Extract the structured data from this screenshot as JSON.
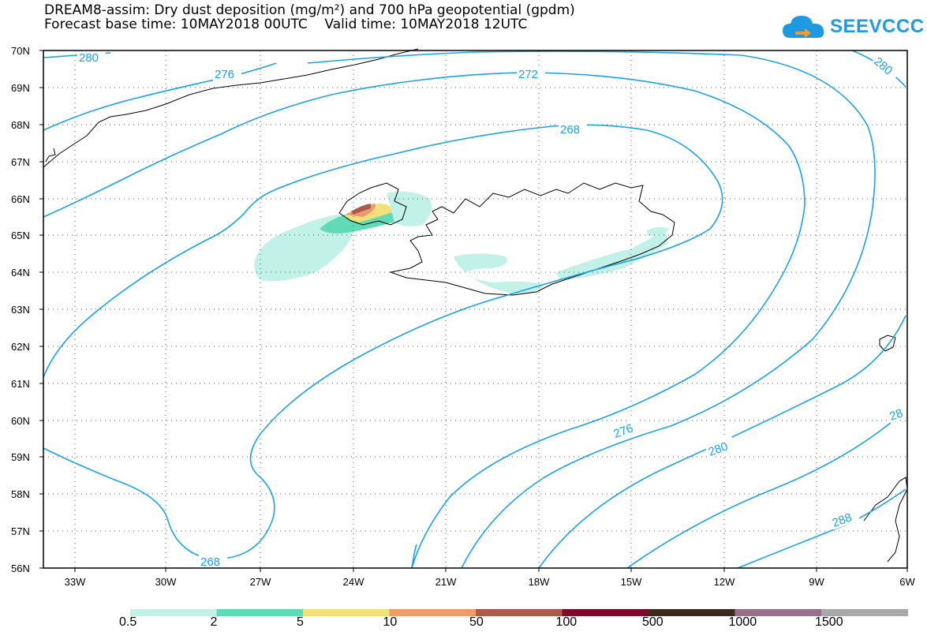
{
  "title_line1": "DREAM8-assim: Dry dust deposition (mg/m²) and 700 hPa geopotential (gpdm)",
  "title_line2": "Forecast base time: 10MAY2018 00UTC    Valid time: 10MAY2018 12UTC",
  "logo": {
    "text": "SEEVCCC",
    "icon": "cloud-icon"
  },
  "colors": {
    "contour": "#1ba2e8",
    "land": "#000000"
  },
  "lat_labels": [
    "70N",
    "69N",
    "68N",
    "67N",
    "66N",
    "65N",
    "64N",
    "63N",
    "62N",
    "61N",
    "60N",
    "59N",
    "58N",
    "57N",
    "56N"
  ],
  "lon_labels": [
    "33W",
    "30W",
    "27W",
    "24W",
    "21W",
    "18W",
    "15W",
    "12W",
    "9W",
    "6W"
  ],
  "contours": {
    "c268_top": "268",
    "c268_bottom": "268",
    "c272": "272",
    "c276_top": "276",
    "c276_bottom": "276",
    "c280_topleft": "280",
    "c280_topright": "280",
    "c280_bottom": "280",
    "c284": "28",
    "c288": "288"
  },
  "legend": {
    "colors": [
      "#c2f1e8",
      "#5fdcb5",
      "#f3e07a",
      "#ec9a70",
      "#a95b4c",
      "#7d0a2a",
      "#3c2a1e",
      "#98708c",
      "#a8a8a8"
    ],
    "labels": [
      "0.5",
      "2",
      "5",
      "10",
      "50",
      "100",
      "500",
      "1000",
      "1500"
    ]
  }
}
